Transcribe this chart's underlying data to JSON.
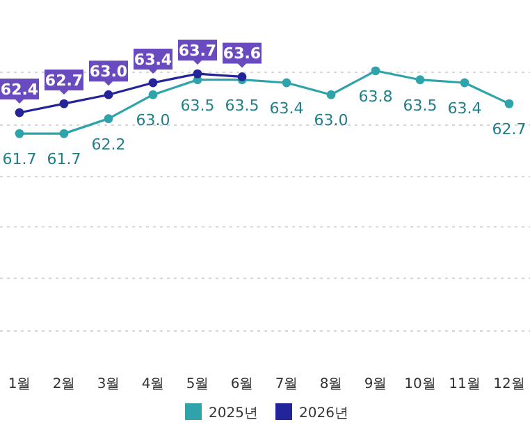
{
  "chart_data": {
    "type": "line",
    "categories": [
      "1월",
      "2월",
      "3월",
      "4월",
      "5월",
      "6월",
      "7월",
      "8월",
      "9월",
      "10월",
      "11월",
      "12월"
    ],
    "series": [
      {
        "name": "2025년",
        "color": "#2ea3aa",
        "values": [
          61.7,
          61.7,
          62.2,
          63.0,
          63.5,
          63.5,
          63.4,
          63.0,
          63.8,
          63.5,
          63.4,
          62.7
        ],
        "value_labels": [
          "61.7",
          "61.7",
          "62.2",
          "63.0",
          "63.5",
          "63.5",
          "63.4",
          "63.0",
          "63.8",
          "63.5",
          "63.4",
          "62.7"
        ]
      },
      {
        "name": "2026년",
        "color": "#23239a",
        "values": [
          62.4,
          62.7,
          63.0,
          63.4,
          63.7,
          63.6,
          null,
          null,
          null,
          null,
          null,
          null
        ],
        "value_labels": [
          "62.4",
          "62.7",
          "63.0",
          "63.4",
          "63.7",
          "63.6",
          null,
          null,
          null,
          null,
          null,
          null
        ]
      }
    ],
    "data_labels": true,
    "marker": "circle",
    "ylim": [
      55.1,
      63.8
    ],
    "line_style": "solid",
    "legend": "bottom",
    "grid": "y",
    "yticks": [
      {
        "value": 55.1,
        "label": null
      },
      {
        "value": 56.86,
        "label": null
      },
      {
        "value": 58.58,
        "label": null
      },
      {
        "value": 60.26,
        "label": null
      },
      {
        "value": 61.98,
        "label": null
      },
      {
        "value": 63.75,
        "label": null
      }
    ]
  }
}
